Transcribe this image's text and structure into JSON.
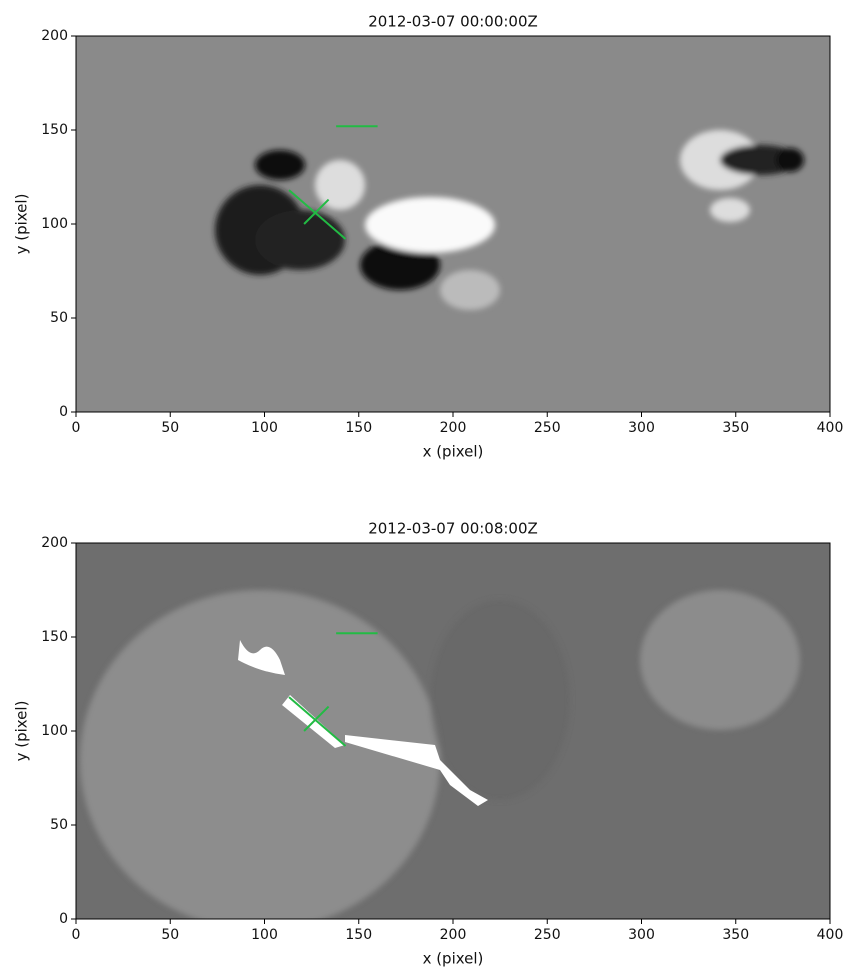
{
  "chart_data": [
    {
      "type": "image",
      "title": "2012-03-07 00:00:00Z",
      "xlabel": "x (pixel)",
      "ylabel": "y (pixel)",
      "xlim": [
        0,
        400
      ],
      "ylim": [
        0,
        200
      ],
      "xticks": [
        0,
        50,
        100,
        150,
        200,
        250,
        300,
        350,
        400
      ],
      "yticks": [
        0,
        50,
        100,
        150,
        200
      ],
      "lines": [
        {
          "x": [
            138,
            160
          ],
          "y": [
            152,
            152
          ],
          "color": "#22bb44"
        },
        {
          "x": [
            113,
            143
          ],
          "y": [
            118,
            92
          ],
          "color": "#22bb44"
        },
        {
          "x": [
            121,
            134
          ],
          "y": [
            100,
            113
          ],
          "color": "#22bb44"
        }
      ]
    },
    {
      "type": "image",
      "title": "2012-03-07 00:08:00Z",
      "xlabel": "x (pixel)",
      "ylabel": "y (pixel)",
      "xlim": [
        0,
        400
      ],
      "ylim": [
        0,
        200
      ],
      "xticks": [
        0,
        50,
        100,
        150,
        200,
        250,
        300,
        350,
        400
      ],
      "yticks": [
        0,
        50,
        100,
        150,
        200
      ],
      "lines": [
        {
          "x": [
            138,
            160
          ],
          "y": [
            152,
            152
          ],
          "color": "#22bb44"
        },
        {
          "x": [
            113,
            143
          ],
          "y": [
            118,
            92
          ],
          "color": "#22bb44"
        },
        {
          "x": [
            121,
            134
          ],
          "y": [
            100,
            113
          ],
          "color": "#22bb44"
        }
      ]
    }
  ]
}
